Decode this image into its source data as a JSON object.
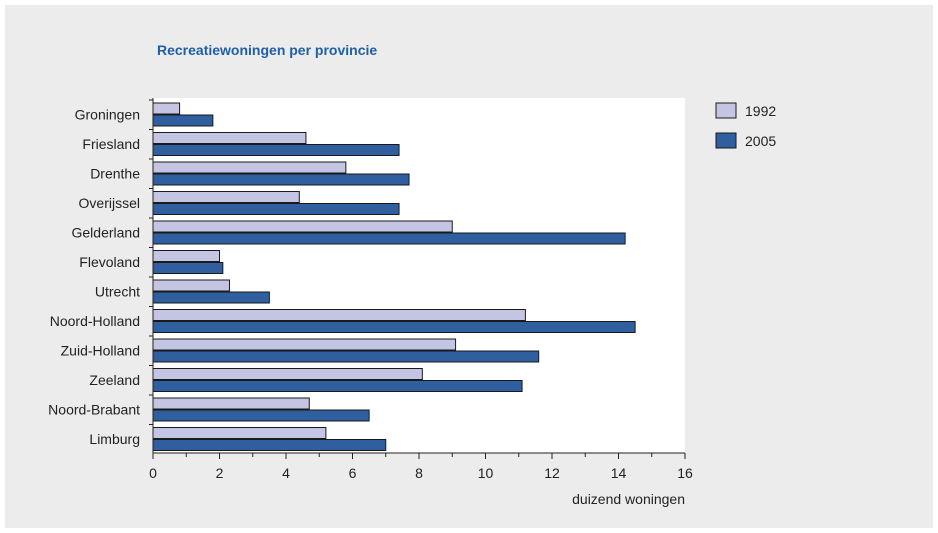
{
  "chart_data": {
    "type": "bar",
    "orientation": "horizontal",
    "title": "Recreatiewoningen per provincie",
    "xlabel": "duizend woningen",
    "ylabel": "",
    "xlim": [
      0,
      16
    ],
    "xticks": [
      "0",
      "2",
      "4",
      "6",
      "8",
      "10",
      "12",
      "14",
      "16"
    ],
    "grid": false,
    "legend_position": "top-right",
    "categories": [
      "Groningen",
      "Friesland",
      "Drenthe",
      "Overijssel",
      "Gelderland",
      "Flevoland",
      "Utrecht",
      "Noord-Holland",
      "Zuid-Holland",
      "Zeeland",
      "Noord-Brabant",
      "Limburg"
    ],
    "series": [
      {
        "name": "1992",
        "color": "#c3c5e3",
        "values": [
          0.8,
          4.6,
          5.8,
          4.4,
          9.0,
          2.0,
          2.3,
          11.2,
          9.1,
          8.1,
          4.7,
          5.2
        ]
      },
      {
        "name": "2005",
        "color": "#2f5f9f",
        "values": [
          1.8,
          7.4,
          7.7,
          7.4,
          14.2,
          2.1,
          3.5,
          14.5,
          11.6,
          11.1,
          6.5,
          7.0
        ]
      }
    ]
  }
}
